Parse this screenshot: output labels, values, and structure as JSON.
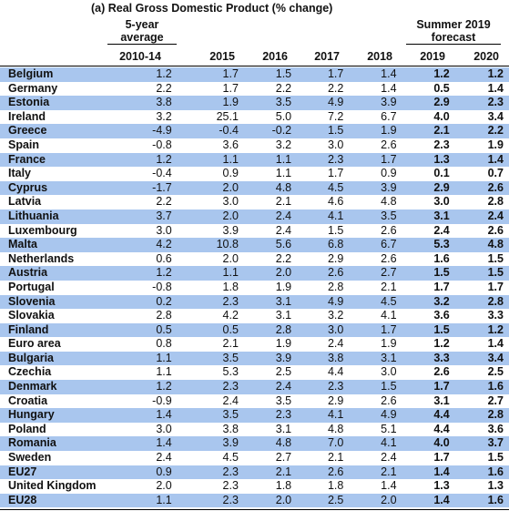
{
  "title": "(a) Real Gross Domestic Product (% change)",
  "header": {
    "avg_line1": "5-year",
    "avg_line2": "average",
    "forecast_line1": "Summer 2019",
    "forecast_line2": "forecast",
    "columns": [
      "2010-14",
      "2015",
      "2016",
      "2017",
      "2018",
      "2019",
      "2020"
    ]
  },
  "rows": [
    {
      "name": "Belgium",
      "values": [
        "1.2",
        "1.7",
        "1.5",
        "1.7",
        "1.4",
        "1.2",
        "1.2"
      ],
      "shaded": true
    },
    {
      "name": "Germany",
      "values": [
        "2.2",
        "1.7",
        "2.2",
        "2.2",
        "1.4",
        "0.5",
        "1.4"
      ],
      "shaded": false
    },
    {
      "name": "Estonia",
      "values": [
        "3.8",
        "1.9",
        "3.5",
        "4.9",
        "3.9",
        "2.9",
        "2.3"
      ],
      "shaded": true
    },
    {
      "name": "Ireland",
      "values": [
        "3.2",
        "25.1",
        "5.0",
        "7.2",
        "6.7",
        "4.0",
        "3.4"
      ],
      "shaded": false
    },
    {
      "name": "Greece",
      "values": [
        "-4.9",
        "-0.4",
        "-0.2",
        "1.5",
        "1.9",
        "2.1",
        "2.2"
      ],
      "shaded": true
    },
    {
      "name": "Spain",
      "values": [
        "-0.8",
        "3.6",
        "3.2",
        "3.0",
        "2.6",
        "2.3",
        "1.9"
      ],
      "shaded": false
    },
    {
      "name": "France",
      "values": [
        "1.2",
        "1.1",
        "1.1",
        "2.3",
        "1.7",
        "1.3",
        "1.4"
      ],
      "shaded": true
    },
    {
      "name": "Italy",
      "values": [
        "-0.4",
        "0.9",
        "1.1",
        "1.7",
        "0.9",
        "0.1",
        "0.7"
      ],
      "shaded": false
    },
    {
      "name": "Cyprus",
      "values": [
        "-1.7",
        "2.0",
        "4.8",
        "4.5",
        "3.9",
        "2.9",
        "2.6"
      ],
      "shaded": true
    },
    {
      "name": "Latvia",
      "values": [
        "2.2",
        "3.0",
        "2.1",
        "4.6",
        "4.8",
        "3.0",
        "2.8"
      ],
      "shaded": false
    },
    {
      "name": "Lithuania",
      "values": [
        "3.7",
        "2.0",
        "2.4",
        "4.1",
        "3.5",
        "3.1",
        "2.4"
      ],
      "shaded": true
    },
    {
      "name": "Luxembourg",
      "values": [
        "3.0",
        "3.9",
        "2.4",
        "1.5",
        "2.6",
        "2.4",
        "2.6"
      ],
      "shaded": false
    },
    {
      "name": "Malta",
      "values": [
        "4.2",
        "10.8",
        "5.6",
        "6.8",
        "6.7",
        "5.3",
        "4.8"
      ],
      "shaded": true
    },
    {
      "name": "Netherlands",
      "values": [
        "0.6",
        "2.0",
        "2.2",
        "2.9",
        "2.6",
        "1.6",
        "1.5"
      ],
      "shaded": false
    },
    {
      "name": "Austria",
      "values": [
        "1.2",
        "1.1",
        "2.0",
        "2.6",
        "2.7",
        "1.5",
        "1.5"
      ],
      "shaded": true
    },
    {
      "name": "Portugal",
      "values": [
        "-0.8",
        "1.8",
        "1.9",
        "2.8",
        "2.1",
        "1.7",
        "1.7"
      ],
      "shaded": false
    },
    {
      "name": "Slovenia",
      "values": [
        "0.2",
        "2.3",
        "3.1",
        "4.9",
        "4.5",
        "3.2",
        "2.8"
      ],
      "shaded": true
    },
    {
      "name": "Slovakia",
      "values": [
        "2.8",
        "4.2",
        "3.1",
        "3.2",
        "4.1",
        "3.6",
        "3.3"
      ],
      "shaded": false
    },
    {
      "name": "Finland",
      "values": [
        "0.5",
        "0.5",
        "2.8",
        "3.0",
        "1.7",
        "1.5",
        "1.2"
      ],
      "shaded": true
    },
    {
      "name": "Euro area",
      "values": [
        "0.8",
        "2.1",
        "1.9",
        "2.4",
        "1.9",
        "1.2",
        "1.4"
      ],
      "shaded": false
    },
    {
      "name": "Bulgaria",
      "values": [
        "1.1",
        "3.5",
        "3.9",
        "3.8",
        "3.1",
        "3.3",
        "3.4"
      ],
      "shaded": true
    },
    {
      "name": "Czechia",
      "values": [
        "1.1",
        "5.3",
        "2.5",
        "4.4",
        "3.0",
        "2.6",
        "2.5"
      ],
      "shaded": false
    },
    {
      "name": "Denmark",
      "values": [
        "1.2",
        "2.3",
        "2.4",
        "2.3",
        "1.5",
        "1.7",
        "1.6"
      ],
      "shaded": true
    },
    {
      "name": "Croatia",
      "values": [
        "-0.9",
        "2.4",
        "3.5",
        "2.9",
        "2.6",
        "3.1",
        "2.7"
      ],
      "shaded": false
    },
    {
      "name": "Hungary",
      "values": [
        "1.4",
        "3.5",
        "2.3",
        "4.1",
        "4.9",
        "4.4",
        "2.8"
      ],
      "shaded": true
    },
    {
      "name": "Poland",
      "values": [
        "3.0",
        "3.8",
        "3.1",
        "4.8",
        "5.1",
        "4.4",
        "3.6"
      ],
      "shaded": false
    },
    {
      "name": "Romania",
      "values": [
        "1.4",
        "3.9",
        "4.8",
        "7.0",
        "4.1",
        "4.0",
        "3.7"
      ],
      "shaded": true
    },
    {
      "name": "Sweden",
      "values": [
        "2.4",
        "4.5",
        "2.7",
        "2.1",
        "2.4",
        "1.7",
        "1.5"
      ],
      "shaded": false
    },
    {
      "name": "EU27",
      "values": [
        "0.9",
        "2.3",
        "2.1",
        "2.6",
        "2.1",
        "1.4",
        "1.6"
      ],
      "shaded": true
    },
    {
      "name": "United Kingdom",
      "values": [
        "2.0",
        "2.3",
        "1.8",
        "1.8",
        "1.4",
        "1.3",
        "1.3"
      ],
      "shaded": false
    },
    {
      "name": "EU28",
      "values": [
        "1.1",
        "2.3",
        "2.0",
        "2.5",
        "2.0",
        "1.4",
        "1.6"
      ],
      "shaded": true
    }
  ],
  "colors": {
    "row_shade": "#a9c6ee"
  }
}
